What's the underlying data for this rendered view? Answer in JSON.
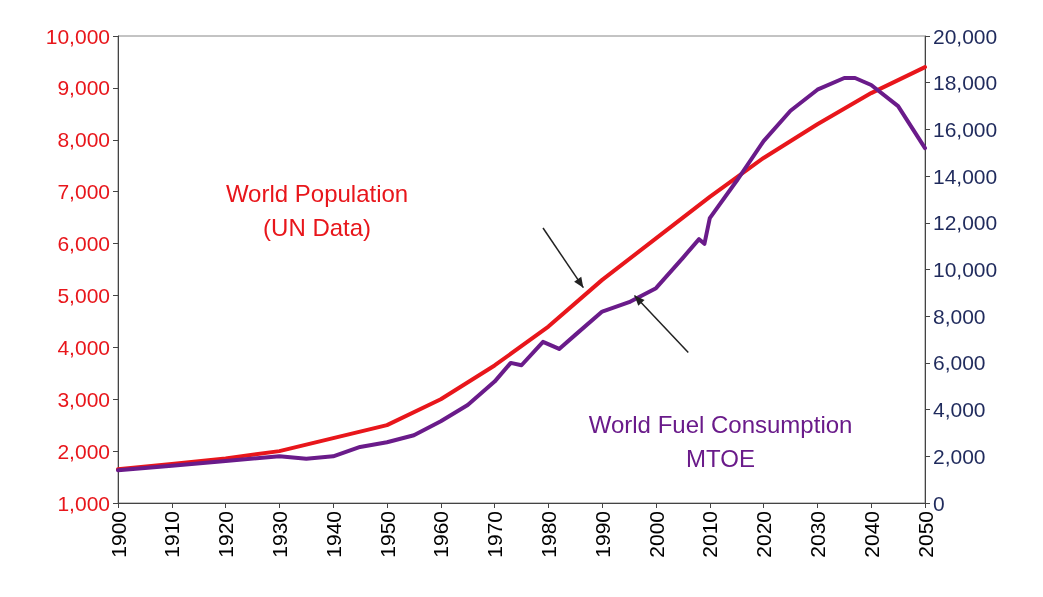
{
  "chart_data": {
    "type": "line",
    "grid": false,
    "legend": false,
    "xlim": [
      1900,
      2050
    ],
    "xticks": [
      1900,
      1910,
      1920,
      1930,
      1940,
      1950,
      1960,
      1970,
      1980,
      1990,
      2000,
      2010,
      2020,
      2030,
      2040,
      2050
    ],
    "ylim": [
      1000,
      10000
    ],
    "yticks": [
      {
        "value": 1000,
        "label": "1,000"
      },
      {
        "value": 2000,
        "label": "2,000"
      },
      {
        "value": 3000,
        "label": "3,000"
      },
      {
        "value": 4000,
        "label": "4,000"
      },
      {
        "value": 5000,
        "label": "5,000"
      },
      {
        "value": 6000,
        "label": "6,000"
      },
      {
        "value": 7000,
        "label": "7,000"
      },
      {
        "value": 8000,
        "label": "8,000"
      },
      {
        "value": 9000,
        "label": "9,000"
      },
      {
        "value": 10000,
        "label": "10,000"
      }
    ],
    "y2lim": [
      0,
      20000
    ],
    "y2ticks": [
      0,
      {
        "value": 2000,
        "label": "2,000"
      },
      {
        "value": 4000,
        "label": "4,000"
      },
      {
        "value": 6000,
        "label": "6,000"
      },
      {
        "value": 8000,
        "label": "8,000"
      },
      {
        "value": 10000,
        "label": "10,000"
      },
      {
        "value": 12000,
        "label": "12,000"
      },
      {
        "value": 14000,
        "label": "14,000"
      },
      {
        "value": 16000,
        "label": "16,000"
      },
      {
        "value": 18000,
        "label": "18,000"
      },
      {
        "value": 20000,
        "label": "20,000"
      }
    ],
    "series": [
      {
        "name": "World Population\n(UN Data)",
        "color": "#e8161b",
        "x": [
          1900,
          1910,
          1920,
          1930,
          1940,
          1950,
          1960,
          1970,
          1980,
          1990,
          2000,
          2010,
          2020,
          2030,
          2040,
          2050
        ],
        "values": [
          1650,
          1750,
          1860,
          2000,
          2250,
          2500,
          3000,
          3650,
          4400,
          5300,
          6100,
          6900,
          7650,
          8300,
          8900,
          9400
        ]
      },
      {
        "name": "World Fuel Consumption\nMTOE",
        "color": "#6a1b8a",
        "axis": "y2",
        "x": [
          1900,
          1910,
          1920,
          1930,
          1935,
          1940,
          1945,
          1950,
          1955,
          1960,
          1965,
          1970,
          1973,
          1975,
          1979,
          1982,
          1985,
          1990,
          1995,
          2000,
          2005,
          2008,
          2009,
          2010,
          2015,
          2020,
          2025,
          2030,
          2035,
          2037,
          2040,
          2045,
          2050
        ],
        "values": [
          1400,
          1600,
          1800,
          2000,
          1900,
          2000,
          2400,
          2600,
          2900,
          3500,
          4200,
          5200,
          6000,
          5900,
          6900,
          6600,
          7200,
          8200,
          8600,
          9200,
          10500,
          11300,
          11100,
          12200,
          13800,
          15500,
          16800,
          17700,
          18200,
          18200,
          17900,
          17000,
          15200
        ]
      }
    ]
  }
}
